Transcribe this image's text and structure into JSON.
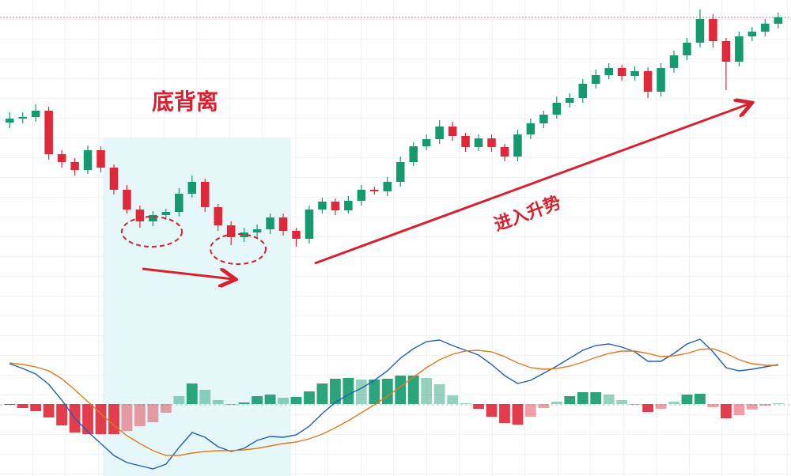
{
  "chart_data": [
    {
      "type": "candlestick",
      "up_color": "#149a6e",
      "down_color": "#e0283a",
      "ylim": [
        180,
        600
      ],
      "annotations": [
        "底背离",
        "进入升势"
      ],
      "open": [
        445,
        450,
        452,
        460,
        405,
        395,
        385,
        410,
        388,
        360,
        335,
        320,
        328,
        332,
        355,
        370,
        338,
        315,
        300,
        306,
        310,
        325,
        308,
        298,
        335,
        345,
        334,
        346,
        360,
        358,
        370,
        395,
        415,
        424,
        440,
        428,
        414,
        425,
        414,
        402,
        430,
        444,
        455,
        470,
        476,
        494,
        505,
        514,
        504,
        510,
        484,
        514,
        530,
        546,
        576,
        548,
        522,
        554,
        560,
        570
      ],
      "high": [
        458,
        458,
        468,
        465,
        410,
        400,
        416,
        415,
        392,
        366,
        340,
        333,
        336,
        362,
        378,
        374,
        342,
        320,
        312,
        316,
        330,
        330,
        312,
        340,
        350,
        349,
        352,
        366,
        364,
        376,
        402,
        420,
        430,
        448,
        446,
        432,
        430,
        430,
        418,
        436,
        450,
        460,
        478,
        482,
        500,
        512,
        520,
        518,
        516,
        515,
        520,
        536,
        552,
        588,
        582,
        552,
        560,
        566,
        576,
        584
      ],
      "low": [
        438,
        444,
        446,
        398,
        388,
        378,
        380,
        382,
        354,
        330,
        312,
        314,
        322,
        326,
        350,
        332,
        308,
        290,
        294,
        300,
        304,
        302,
        288,
        292,
        330,
        328,
        330,
        340,
        354,
        352,
        364,
        390,
        410,
        418,
        422,
        408,
        409,
        408,
        396,
        396,
        424,
        438,
        450,
        464,
        470,
        488,
        500,
        498,
        498,
        476,
        478,
        508,
        524,
        540,
        540,
        486,
        516,
        548,
        554,
        564
      ],
      "close": [
        450,
        452,
        460,
        405,
        395,
        385,
        410,
        388,
        360,
        335,
        320,
        328,
        332,
        355,
        370,
        338,
        315,
        300,
        306,
        310,
        325,
        308,
        298,
        335,
        345,
        334,
        346,
        360,
        358,
        370,
        395,
        415,
        424,
        440,
        428,
        414,
        425,
        414,
        402,
        430,
        444,
        455,
        470,
        476,
        494,
        505,
        514,
        504,
        510,
        484,
        514,
        530,
        546,
        576,
        548,
        522,
        554,
        560,
        570,
        578
      ]
    },
    {
      "type": "macd",
      "ylim": [
        -9.1,
        9.1
      ],
      "up_color": "#149a6e",
      "down_color": "#e0283a",
      "series": [
        {
          "color": "#1f5fb0",
          "values": [
            5.1,
            4.5,
            3.8,
            2.5,
            0.5,
            -1.8,
            -3.5,
            -5,
            -6.5,
            -7.4,
            -7.8,
            -8.2,
            -7.6,
            -5.5,
            -3.6,
            -4.2,
            -5.4,
            -6,
            -5.6,
            -4.6,
            -4.1,
            -4.2,
            -3.9,
            -2.8,
            -1.2,
            0.2,
            1.2,
            2,
            3,
            4.2,
            5.8,
            7,
            7.9,
            8.1,
            7.4,
            6.8,
            6.2,
            5,
            3.6,
            2.6,
            3,
            3.9,
            4.8,
            5.8,
            6.8,
            7.4,
            7.6,
            7.2,
            6.6,
            5.4,
            5.4,
            6.4,
            7.6,
            8.2,
            6.6,
            4.6,
            4.2,
            4.4,
            4.7,
            5
          ]
        },
        {
          "color": "#e07a1e",
          "values": [
            5.2,
            5,
            4.7,
            4.2,
            3.2,
            1.8,
            0.3,
            -1.2,
            -2.7,
            -4,
            -5,
            -5.9,
            -6.5,
            -6.5,
            -6.2,
            -6,
            -5.9,
            -5.9,
            -5.8,
            -5.6,
            -5.3,
            -5,
            -4.8,
            -4.4,
            -3.8,
            -3,
            -2.1,
            -1.1,
            -0.1,
            1,
            2.2,
            3.4,
            4.6,
            5.6,
            6.3,
            6.7,
            6.8,
            6.6,
            6,
            5.2,
            4.6,
            4.4,
            4.5,
            4.8,
            5.3,
            5.9,
            6.4,
            6.7,
            6.7,
            6.4,
            6,
            6.1,
            6.4,
            6.9,
            7,
            6.4,
            5.6,
            5.1,
            4.9,
            4.9
          ]
        }
      ],
      "histogram": [
        -0.1,
        -0.5,
        -0.9,
        -1.7,
        -2.7,
        -3.6,
        -3.8,
        -3.8,
        -3.8,
        -3.4,
        -2.8,
        -2.3,
        -1.1,
        1,
        2.6,
        1.8,
        0.5,
        -0.1,
        0.2,
        1,
        1.2,
        0.8,
        0.9,
        1.6,
        2.6,
        3.2,
        3.3,
        3.1,
        3.1,
        3.2,
        3.6,
        3.6,
        3.3,
        2.5,
        1.1,
        0.1,
        -0.6,
        -1.6,
        -2.4,
        -2.6,
        -1.6,
        -0.5,
        0.3,
        1,
        1.5,
        1.5,
        1.2,
        0.5,
        -0.1,
        -1,
        -0.6,
        0.3,
        1.2,
        1.3,
        -0.4,
        -1.8,
        -1.4,
        -0.7,
        -0.2,
        0.1
      ]
    }
  ]
}
